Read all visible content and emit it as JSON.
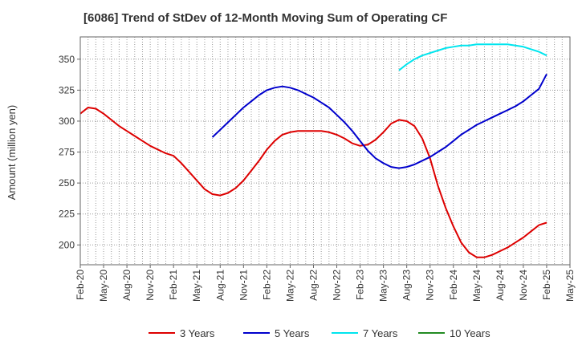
{
  "title": "[6086]  Trend of StDev of 12-Month Moving Sum of Operating CF",
  "colors": {
    "3 Years": "#dd0000",
    "5 Years": "#0000cc",
    "7 Years": "#00e5ee",
    "10 Years": "#228b22"
  },
  "chart_data": {
    "type": "line",
    "title": "[6086]  Trend of StDev of 12-Month Moving Sum of Operating CF",
    "xlabel": "",
    "ylabel": "Amount (million yen)",
    "ylim": [
      184,
      368
    ],
    "yticks": [
      200,
      225,
      250,
      275,
      300,
      325,
      350
    ],
    "x_tick_labels": [
      "Feb-20",
      "May-20",
      "Aug-20",
      "Nov-20",
      "Feb-21",
      "May-21",
      "Aug-21",
      "Nov-21",
      "Feb-22",
      "May-22",
      "Aug-22",
      "Nov-22",
      "Feb-23",
      "May-23",
      "Aug-23",
      "Nov-23",
      "Feb-24",
      "May-24",
      "Aug-24",
      "Nov-24",
      "Feb-25",
      "May-25"
    ],
    "x_range": [
      "2020-02",
      "2025-05"
    ],
    "grid": true,
    "legend_position": "bottom",
    "series": [
      {
        "name": "3 Years",
        "x": [
          "2020-02",
          "2020-03",
          "2020-04",
          "2020-05",
          "2020-06",
          "2020-07",
          "2020-08",
          "2020-09",
          "2020-10",
          "2020-11",
          "2020-12",
          "2021-01",
          "2021-02",
          "2021-03",
          "2021-04",
          "2021-05",
          "2021-06",
          "2021-07",
          "2021-08",
          "2021-09",
          "2021-10",
          "2021-11",
          "2021-12",
          "2022-01",
          "2022-02",
          "2022-03",
          "2022-04",
          "2022-05",
          "2022-06",
          "2022-07",
          "2022-08",
          "2022-09",
          "2022-10",
          "2022-11",
          "2022-12",
          "2023-01",
          "2023-02",
          "2023-03",
          "2023-04",
          "2023-05",
          "2023-06",
          "2023-07",
          "2023-08",
          "2023-09",
          "2023-10",
          "2023-11",
          "2023-12",
          "2024-01",
          "2024-02",
          "2024-03",
          "2024-04",
          "2024-05",
          "2024-06",
          "2024-07",
          "2024-08",
          "2024-09",
          "2024-10",
          "2024-11",
          "2024-12",
          "2025-01",
          "2025-02"
        ],
        "values": [
          306,
          311,
          310,
          306,
          301,
          296,
          292,
          288,
          284,
          280,
          277,
          274,
          272,
          266,
          259,
          252,
          245,
          241,
          240,
          242,
          246,
          252,
          260,
          268,
          277,
          284,
          289,
          291,
          292,
          292,
          292,
          292,
          291,
          289,
          286,
          282,
          280,
          281,
          285,
          291,
          298,
          301,
          300,
          296,
          286,
          270,
          248,
          230,
          215,
          202,
          194,
          190,
          190,
          192,
          195,
          198,
          202,
          206,
          211,
          216,
          218
        ],
        "color": "#dd0000"
      },
      {
        "name": "5 Years",
        "x": [
          "2021-07",
          "2021-08",
          "2021-09",
          "2021-10",
          "2021-11",
          "2021-12",
          "2022-01",
          "2022-02",
          "2022-03",
          "2022-04",
          "2022-05",
          "2022-06",
          "2022-07",
          "2022-08",
          "2022-09",
          "2022-10",
          "2022-11",
          "2022-12",
          "2023-01",
          "2023-02",
          "2023-03",
          "2023-04",
          "2023-05",
          "2023-06",
          "2023-07",
          "2023-08",
          "2023-09",
          "2023-10",
          "2023-11",
          "2023-12",
          "2024-01",
          "2024-02",
          "2024-03",
          "2024-04",
          "2024-05",
          "2024-06",
          "2024-07",
          "2024-08",
          "2024-09",
          "2024-10",
          "2024-11",
          "2024-12",
          "2025-01",
          "2025-02"
        ],
        "values": [
          287,
          293,
          299,
          305,
          311,
          316,
          321,
          325,
          327,
          328,
          327,
          325,
          322,
          319,
          315,
          311,
          305,
          299,
          292,
          284,
          276,
          270,
          266,
          263,
          262,
          263,
          265,
          268,
          271,
          275,
          279,
          284,
          289,
          293,
          297,
          300,
          303,
          306,
          309,
          312,
          316,
          321,
          326,
          338
        ],
        "color": "#0000cc"
      },
      {
        "name": "7 Years",
        "x": [
          "2023-07",
          "2023-08",
          "2023-09",
          "2023-10",
          "2023-11",
          "2023-12",
          "2024-01",
          "2024-02",
          "2024-03",
          "2024-04",
          "2024-05",
          "2024-06",
          "2024-07",
          "2024-08",
          "2024-09",
          "2024-10",
          "2024-11",
          "2024-12",
          "2025-01",
          "2025-02"
        ],
        "values": [
          341,
          346,
          350,
          353,
          355,
          357,
          359,
          360,
          361,
          361,
          362,
          362,
          362,
          362,
          362,
          361,
          360,
          358,
          356,
          353
        ],
        "color": "#00e5ee"
      },
      {
        "name": "10 Years",
        "x": [],
        "values": [],
        "color": "#228b22"
      }
    ]
  }
}
